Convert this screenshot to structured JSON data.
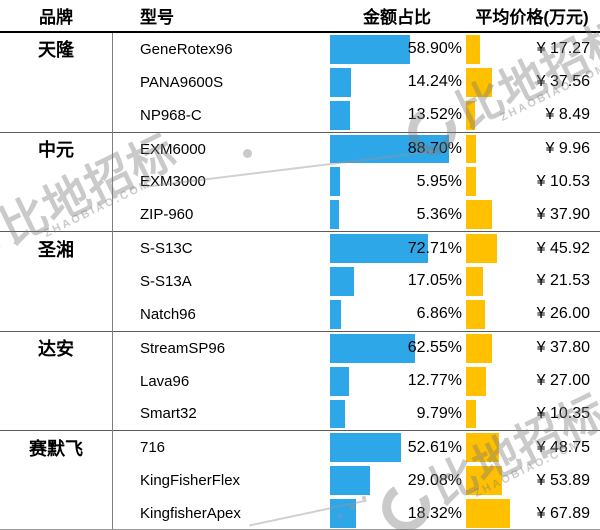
{
  "header": {
    "brand": "品牌",
    "model": "型号",
    "amount": "金额占比",
    "price": "平均价格(万元)"
  },
  "colors": {
    "bar_blue": "#2EA7E9",
    "bar_gold": "#FFC000"
  },
  "watermark": {
    "brand_text": "比地招标",
    "domain_text": "ZHAOBIAO.COM"
  },
  "table": {
    "groups": [
      {
        "brand": "天隆",
        "items": [
          {
            "model": "GeneRotex96",
            "pct_label": "58.90%",
            "pct": 58.9,
            "price_label": "¥ 17.27",
            "price": 17.27
          },
          {
            "model": "PANA9600S",
            "pct_label": "14.24%",
            "pct": 14.24,
            "price_label": "¥ 37.56",
            "price": 37.56
          },
          {
            "model": "NP968-C",
            "pct_label": "13.52%",
            "pct": 13.52,
            "price_label": "¥ 8.49",
            "price": 8.49
          }
        ]
      },
      {
        "brand": "中元",
        "items": [
          {
            "model": "EXM6000",
            "pct_label": "88.70%",
            "pct": 88.7,
            "price_label": "¥ 9.96",
            "price": 9.96
          },
          {
            "model": "EXM3000",
            "pct_label": "5.95%",
            "pct": 5.95,
            "price_label": "¥ 10.53",
            "price": 10.53
          },
          {
            "model": "ZIP-960",
            "pct_label": "5.36%",
            "pct": 5.36,
            "price_label": "¥ 37.90",
            "price": 37.9
          }
        ]
      },
      {
        "brand": "圣湘",
        "items": [
          {
            "model": "S-S13C",
            "pct_label": "72.71%",
            "pct": 72.71,
            "price_label": "¥ 45.92",
            "price": 45.92
          },
          {
            "model": "S-S13A",
            "pct_label": "17.05%",
            "pct": 17.05,
            "price_label": "¥ 21.53",
            "price": 21.53
          },
          {
            "model": "Natch96",
            "pct_label": "6.86%",
            "pct": 6.86,
            "price_label": "¥ 26.00",
            "price": 26.0
          }
        ]
      },
      {
        "brand": "达安",
        "items": [
          {
            "model": "StreamSP96",
            "pct_label": "62.55%",
            "pct": 62.55,
            "price_label": "¥ 37.80",
            "price": 37.8
          },
          {
            "model": "Lava96",
            "pct_label": "12.77%",
            "pct": 12.77,
            "price_label": "¥ 27.00",
            "price": 27.0
          },
          {
            "model": "Smart32",
            "pct_label": "9.79%",
            "pct": 9.79,
            "price_label": "¥ 10.35",
            "price": 10.35
          }
        ]
      },
      {
        "brand": "赛默飞",
        "items": [
          {
            "model": "716",
            "pct_label": "52.61%",
            "pct": 52.61,
            "price_label": "¥ 48.75",
            "price": 48.75
          },
          {
            "model": "KingFisherFlex",
            "pct_label": "29.08%",
            "pct": 29.08,
            "price_label": "¥ 53.89",
            "price": 53.89
          },
          {
            "model": "KingfisherApex",
            "pct_label": "18.32%",
            "pct": 18.32,
            "price_label": "¥ 67.89",
            "price": 67.89
          }
        ]
      }
    ]
  },
  "chart_data": {
    "type": "table",
    "title": "",
    "columns": [
      "品牌",
      "型号",
      "金额占比",
      "平均价格(万元)"
    ],
    "embedded_bars": {
      "金额占比": {
        "type": "bar",
        "color": "#2EA7E9",
        "scale": "min-max"
      },
      "平均价格(万元)": {
        "type": "bar",
        "color": "#FFC000",
        "scale": "min-max"
      }
    },
    "rows": [
      [
        "天隆",
        "GeneRotex96",
        58.9,
        17.27
      ],
      [
        "天隆",
        "PANA9600S",
        14.24,
        37.56
      ],
      [
        "天隆",
        "NP968-C",
        13.52,
        8.49
      ],
      [
        "中元",
        "EXM6000",
        88.7,
        9.96
      ],
      [
        "中元",
        "EXM3000",
        5.95,
        10.53
      ],
      [
        "中元",
        "ZIP-960",
        5.36,
        37.9
      ],
      [
        "圣湘",
        "S-S13C",
        72.71,
        45.92
      ],
      [
        "圣湘",
        "S-S13A",
        17.05,
        21.53
      ],
      [
        "圣湘",
        "Natch96",
        6.86,
        26.0
      ],
      [
        "达安",
        "StreamSP96",
        62.55,
        37.8
      ],
      [
        "达安",
        "Lava96",
        12.77,
        27.0
      ],
      [
        "达安",
        "Smart32",
        9.79,
        10.35
      ],
      [
        "赛默飞",
        "716",
        52.61,
        48.75
      ],
      [
        "赛默飞",
        "KingFisherFlex",
        29.08,
        53.89
      ],
      [
        "赛默飞",
        "KingfisherApex",
        18.32,
        67.89
      ]
    ]
  }
}
